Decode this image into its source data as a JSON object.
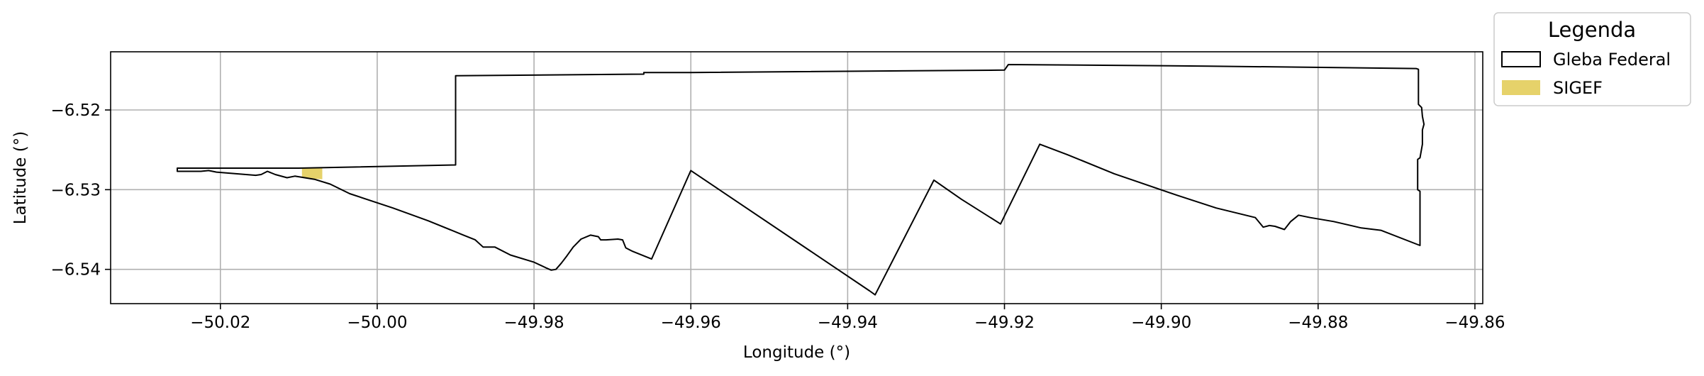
{
  "chart_data": {
    "type": "map",
    "xlabel": "Longitude (°)",
    "ylabel": "Latitude (°)",
    "xlim": [
      -50.034,
      -49.859
    ],
    "ylim": [
      -6.5443,
      -6.5127
    ],
    "xticks": [
      -50.02,
      -50.0,
      -49.98,
      -49.96,
      -49.94,
      -49.92,
      -49.9,
      -49.88,
      -49.86
    ],
    "xtick_labels": [
      "−50.02",
      "−50.00",
      "−49.98",
      "−49.96",
      "−49.94",
      "−49.92",
      "−49.90",
      "−49.88",
      "−49.86"
    ],
    "yticks": [
      -6.52,
      -6.53,
      -6.54
    ],
    "ytick_labels": [
      "−6.52",
      "−6.53",
      "−6.54"
    ],
    "grid": true,
    "legend": {
      "title": "Legenda",
      "placement": "outside-top-right",
      "entries": [
        {
          "label": "Gleba Federal",
          "style": "outline",
          "color": "#000000"
        },
        {
          "label": "SIGEF",
          "style": "fill",
          "color": "#e6d26a"
        }
      ]
    },
    "layers": [
      {
        "name": "Gleba Federal",
        "type": "polygon",
        "stroke": "#000000",
        "fill": "none",
        "coordinates": [
          [
            -50.0255,
            -6.5273
          ],
          [
            -50.01,
            -6.5273
          ],
          [
            -49.99,
            -6.5269
          ],
          [
            -49.99,
            -6.5157
          ],
          [
            -49.966,
            -6.5155
          ],
          [
            -49.966,
            -6.5153
          ],
          [
            -49.96,
            -6.5153
          ],
          [
            -49.92,
            -6.515
          ],
          [
            -49.9195,
            -6.5143
          ],
          [
            -49.894,
            -6.5145
          ],
          [
            -49.8675,
            -6.5148
          ],
          [
            -49.8672,
            -6.5149
          ],
          [
            -49.8672,
            -6.5193
          ],
          [
            -49.8668,
            -6.5197
          ],
          [
            -49.8667,
            -6.5208
          ],
          [
            -49.8665,
            -6.5218
          ],
          [
            -49.8667,
            -6.5225
          ],
          [
            -49.8667,
            -6.5243
          ],
          [
            -49.867,
            -6.526
          ],
          [
            -49.8673,
            -6.5262
          ],
          [
            -49.8673,
            -6.53
          ],
          [
            -49.867,
            -6.5302
          ],
          [
            -49.867,
            -6.537
          ],
          [
            -49.872,
            -6.5351
          ],
          [
            -49.8745,
            -6.5348
          ],
          [
            -49.878,
            -6.534
          ],
          [
            -49.881,
            -6.5335
          ],
          [
            -49.8825,
            -6.5332
          ],
          [
            -49.8835,
            -6.534
          ],
          [
            -49.8843,
            -6.535
          ],
          [
            -49.8855,
            -6.5346
          ],
          [
            -49.8862,
            -6.5345
          ],
          [
            -49.887,
            -6.5347
          ],
          [
            -49.888,
            -6.5335
          ],
          [
            -49.893,
            -6.5323
          ],
          [
            -49.898,
            -6.5307
          ],
          [
            -49.906,
            -6.528
          ],
          [
            -49.912,
            -6.5256
          ],
          [
            -49.9155,
            -6.5243
          ],
          [
            -49.9205,
            -6.5343
          ],
          [
            -49.9255,
            -6.5312
          ],
          [
            -49.929,
            -6.5288
          ],
          [
            -49.9365,
            -6.5432
          ],
          [
            -49.9372,
            -6.5427
          ],
          [
            -49.96,
            -6.5276
          ],
          [
            -49.965,
            -6.5387
          ],
          [
            -49.9675,
            -6.5377
          ],
          [
            -49.9683,
            -6.5373
          ],
          [
            -49.9687,
            -6.5363
          ],
          [
            -49.9693,
            -6.5362
          ],
          [
            -49.9708,
            -6.5363
          ],
          [
            -49.9715,
            -6.5363
          ],
          [
            -49.9718,
            -6.5359
          ],
          [
            -49.9728,
            -6.5357
          ],
          [
            -49.974,
            -6.5362
          ],
          [
            -49.975,
            -6.5372
          ],
          [
            -49.9758,
            -6.5383
          ],
          [
            -49.9765,
            -6.5392
          ],
          [
            -49.9772,
            -6.54
          ],
          [
            -49.9778,
            -6.5401
          ],
          [
            -49.9785,
            -6.5398
          ],
          [
            -49.98,
            -6.5391
          ],
          [
            -49.983,
            -6.5382
          ],
          [
            -49.985,
            -6.5372
          ],
          [
            -49.9865,
            -6.5372
          ],
          [
            -49.9875,
            -6.5363
          ],
          [
            -49.989,
            -6.5357
          ],
          [
            -49.9935,
            -6.5339
          ],
          [
            -49.998,
            -6.5323
          ],
          [
            -50.0035,
            -6.5305
          ],
          [
            -50.006,
            -6.5293
          ],
          [
            -50.008,
            -6.5287
          ],
          [
            -50.0105,
            -6.5283
          ],
          [
            -50.0115,
            -6.5285
          ],
          [
            -50.013,
            -6.5281
          ],
          [
            -50.014,
            -6.5277
          ],
          [
            -50.0148,
            -6.5281
          ],
          [
            -50.0155,
            -6.5282
          ],
          [
            -50.0205,
            -6.5278
          ],
          [
            -50.0215,
            -6.5276
          ],
          [
            -50.0225,
            -6.5277
          ],
          [
            -50.0255,
            -6.5277
          ],
          [
            -50.0255,
            -6.5273
          ]
        ]
      },
      {
        "name": "SIGEF",
        "type": "polygon",
        "fill": "#e6d26a",
        "stroke": "none",
        "coordinates": [
          [
            -50.0096,
            -6.5273
          ],
          [
            -50.007,
            -6.5273
          ],
          [
            -50.007,
            -6.5287
          ],
          [
            -50.0096,
            -6.5285
          ]
        ]
      }
    ]
  }
}
